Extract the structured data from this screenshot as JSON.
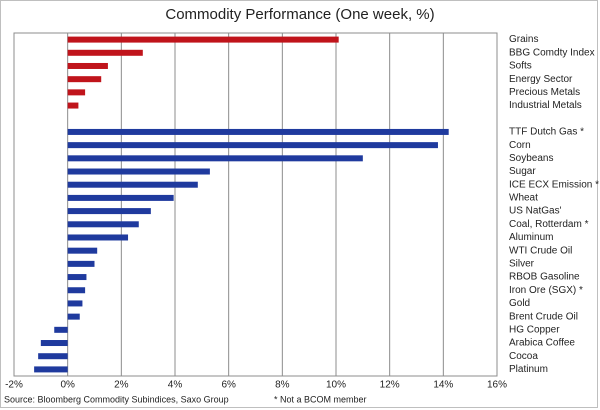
{
  "chart_data": {
    "type": "hbar",
    "title": "Commodity Performance (One week, %)",
    "categories": [
      "Grains",
      "BBG Comdty Index",
      "Softs",
      "Energy Sector",
      "Precious Metals",
      "Industrial Metals",
      null,
      "TTF Dutch Gas *",
      "Corn",
      "Soybeans",
      "Sugar",
      "ICE ECX Emission *",
      "Wheat",
      "US NatGas'",
      "Coal, Rotterdam *",
      "Aluminum",
      "WTI Crude Oil",
      "Silver",
      "RBOB Gasoline",
      "Iron Ore (SGX) *",
      "Gold",
      "Brent Crude Oil",
      "HG Copper",
      "Arabica Coffee",
      "Cocoa",
      "Platinum"
    ],
    "values": [
      10.1,
      2.8,
      1.5,
      1.25,
      0.65,
      0.4,
      null,
      14.2,
      13.8,
      11.0,
      5.3,
      4.85,
      3.95,
      3.1,
      2.65,
      2.25,
      1.1,
      1.0,
      0.7,
      0.65,
      0.55,
      0.45,
      -0.5,
      -1.0,
      -1.1,
      -1.25
    ],
    "colors": [
      "#c0141b",
      "#c0141b",
      "#c0141b",
      "#c0141b",
      "#c0141b",
      "#c0141b",
      null,
      "#1f3a9e",
      "#1f3a9e",
      "#1f3a9e",
      "#1f3a9e",
      "#1f3a9e",
      "#1f3a9e",
      "#1f3a9e",
      "#1f3a9e",
      "#1f3a9e",
      "#1f3a9e",
      "#1f3a9e",
      "#1f3a9e",
      "#1f3a9e",
      "#1f3a9e",
      "#1f3a9e",
      "#1f3a9e",
      "#1f3a9e",
      "#1f3a9e",
      "#1f3a9e"
    ],
    "xlim": [
      -2,
      16
    ],
    "xticks": [
      {
        "value": -2,
        "label": "-2%"
      },
      {
        "value": 0,
        "label": "0%"
      },
      {
        "value": 2,
        "label": "2%"
      },
      {
        "value": 4,
        "label": "4%"
      },
      {
        "value": 6,
        "label": "6%"
      },
      {
        "value": 8,
        "label": "8%"
      },
      {
        "value": 10,
        "label": "10%"
      },
      {
        "value": 12,
        "label": "12%"
      },
      {
        "value": 14,
        "label": "14%"
      },
      {
        "value": 16,
        "label": "16%"
      }
    ],
    "grid": true,
    "source": "Source: Bloomberg Commodity Subindices, Saxo Group",
    "note": "* Not a BCOM member"
  }
}
